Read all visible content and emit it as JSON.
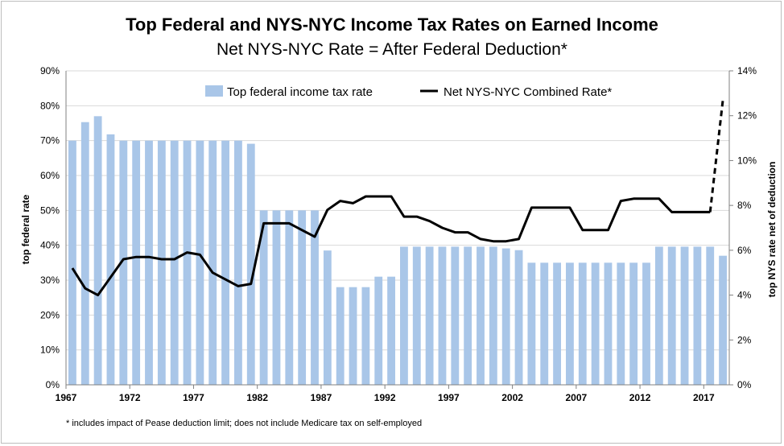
{
  "chart_data": {
    "type": "bar",
    "title": "Top Federal and NYS-NYC Income Tax Rates on Earned Income",
    "subtitle": "Net NYS-NYC Rate = After Federal Deduction*",
    "ylabel_left": "top federal rate",
    "ylabel_right": "top NYS rate net of deduction",
    "footnote": "* includes impact of Pease deduction limit; does not include Medicare tax on self-employed",
    "ylim_left": [
      0,
      90
    ],
    "ylim_right": [
      0,
      14
    ],
    "yticks_left": [
      "0%",
      "10%",
      "20%",
      "30%",
      "40%",
      "50%",
      "60%",
      "70%",
      "80%",
      "90%"
    ],
    "yticks_right": [
      "0%",
      "2%",
      "4%",
      "6%",
      "8%",
      "10%",
      "12%",
      "14%"
    ],
    "xtick_labels": [
      "1967",
      "1972",
      "1977",
      "1982",
      "1987",
      "1992",
      "1997",
      "2002",
      "2007",
      "2012",
      "2017"
    ],
    "legend_placement": "top",
    "colors": {
      "bars": "#a9c6e8",
      "line": "#000000"
    },
    "years": [
      1967,
      1968,
      1969,
      1970,
      1971,
      1972,
      1973,
      1974,
      1975,
      1976,
      1977,
      1978,
      1979,
      1980,
      1981,
      1982,
      1983,
      1984,
      1985,
      1986,
      1987,
      1988,
      1989,
      1990,
      1991,
      1992,
      1993,
      1994,
      1995,
      1996,
      1997,
      1998,
      1999,
      2000,
      2001,
      2002,
      2003,
      2004,
      2005,
      2006,
      2007,
      2008,
      2009,
      2010,
      2011,
      2012,
      2013,
      2014,
      2015,
      2016,
      2017,
      2018
    ],
    "series": [
      {
        "name": "Top federal income tax rate",
        "axis": "left",
        "values": [
          70,
          75.3,
          77,
          71.8,
          70,
          70,
          70,
          70,
          70,
          70,
          70,
          70,
          70,
          70,
          69.1,
          50,
          50,
          50,
          50,
          50,
          38.5,
          28,
          28,
          28,
          31,
          31,
          39.6,
          39.6,
          39.6,
          39.6,
          39.6,
          39.6,
          39.6,
          39.6,
          39.1,
          38.6,
          35,
          35,
          35,
          35,
          35,
          35,
          35,
          35,
          35,
          35,
          39.6,
          39.6,
          39.6,
          39.6,
          39.6,
          37
        ]
      },
      {
        "name": "Net NYS-NYC Combined Rate*",
        "axis": "right",
        "values": [
          5.2,
          4.3,
          4.0,
          4.8,
          5.6,
          5.7,
          5.7,
          5.6,
          5.6,
          5.9,
          5.8,
          5.0,
          4.7,
          4.4,
          4.5,
          7.2,
          7.2,
          7.2,
          6.9,
          6.6,
          7.8,
          8.2,
          8.1,
          8.4,
          8.4,
          8.4,
          7.5,
          7.5,
          7.3,
          7.0,
          6.8,
          6.8,
          6.5,
          6.4,
          6.4,
          6.5,
          7.9,
          7.9,
          7.9,
          7.9,
          6.9,
          6.9,
          6.9,
          8.2,
          8.3,
          8.3,
          8.3,
          7.7,
          7.7,
          7.7,
          7.7,
          7.7
        ],
        "projected": {
          "years": [
            2017,
            2018
          ],
          "values": [
            7.7,
            12.7
          ]
        }
      }
    ]
  }
}
